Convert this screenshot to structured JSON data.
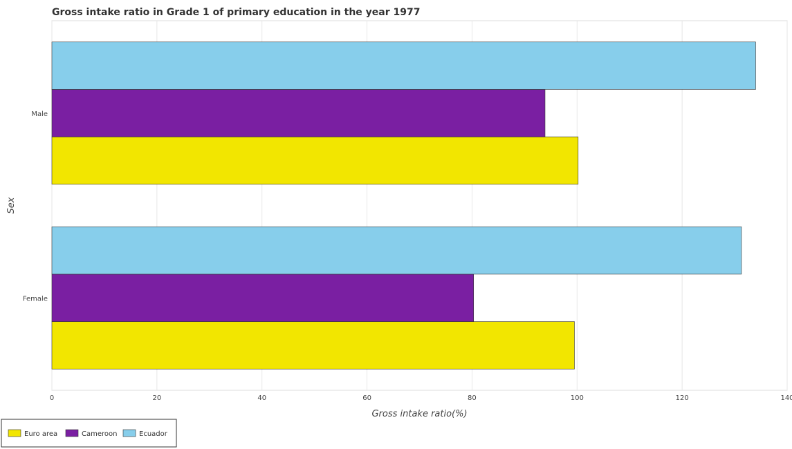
{
  "chart_data": {
    "type": "bar",
    "orientation": "horizontal",
    "title": "Gross intake ratio in Grade 1 of primary education in the year 1977",
    "xlabel": "Gross intake ratio(%)",
    "ylabel": "Sex",
    "categories": [
      "Female",
      "Male"
    ],
    "series": [
      {
        "name": "Euro area",
        "color": "#f2e600",
        "values": [
          99.5,
          100.2
        ]
      },
      {
        "name": "Cameroon",
        "color": "#7a1fa2",
        "values": [
          80.3,
          93.9
        ]
      },
      {
        "name": "Ecuador",
        "color": "#87ceeb",
        "values": [
          131.3,
          134.0
        ]
      }
    ],
    "xlim": [
      0,
      140
    ],
    "xticks": [
      0,
      20,
      40,
      60,
      80,
      100,
      120,
      140
    ],
    "grid": true,
    "legend": "bottom-left"
  }
}
